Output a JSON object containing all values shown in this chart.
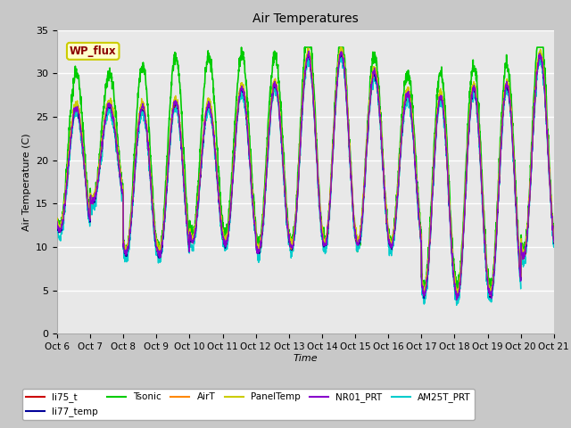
{
  "title": "Air Temperatures",
  "xlabel": "Time",
  "ylabel": "Air Temperature (C)",
  "ylim": [
    0,
    35
  ],
  "yticks": [
    0,
    5,
    10,
    15,
    20,
    25,
    30,
    35
  ],
  "xtick_labels": [
    "Oct 6",
    "Oct 7",
    "Oct 8",
    "Oct 9",
    "Oct 10",
    "Oct 11",
    "Oct 12",
    "Oct 13",
    "Oct 14",
    "Oct 15",
    "Oct 16",
    "Oct 17",
    "Oct 18",
    "Oct 19",
    "Oct 20",
    "Oct 21"
  ],
  "n_days": 15,
  "pts_per_day": 144,
  "legend_entries": [
    "li75_t",
    "li77_temp",
    "Tsonic",
    "AirT",
    "PanelTemp",
    "NR01_PRT",
    "AM25T_PRT"
  ],
  "line_colors": [
    "#cc0000",
    "#000099",
    "#00cc00",
    "#ff8800",
    "#cccc00",
    "#8800cc",
    "#00cccc"
  ],
  "line_widths": [
    1.0,
    1.0,
    1.2,
    1.0,
    1.0,
    1.0,
    1.0
  ],
  "annotation_text": "WP_flux",
  "plot_background": "#e8e8e8",
  "grid_color": "#ffffff",
  "fig_background": "#c8c8c8",
  "figsize": [
    6.4,
    4.8
  ],
  "dpi": 100,
  "day_max_temps": [
    26,
    26,
    26,
    27,
    27,
    29,
    29,
    32,
    32,
    30,
    28,
    28,
    29,
    29,
    32
  ],
  "day_min_temps": [
    12,
    15,
    9,
    9,
    11,
    11,
    10,
    10,
    10,
    10,
    10,
    5,
    5,
    5,
    9
  ],
  "tsonic_extra": [
    4,
    4,
    5,
    5,
    5,
    3,
    3,
    3,
    2,
    2,
    2,
    2,
    2,
    2,
    3
  ]
}
